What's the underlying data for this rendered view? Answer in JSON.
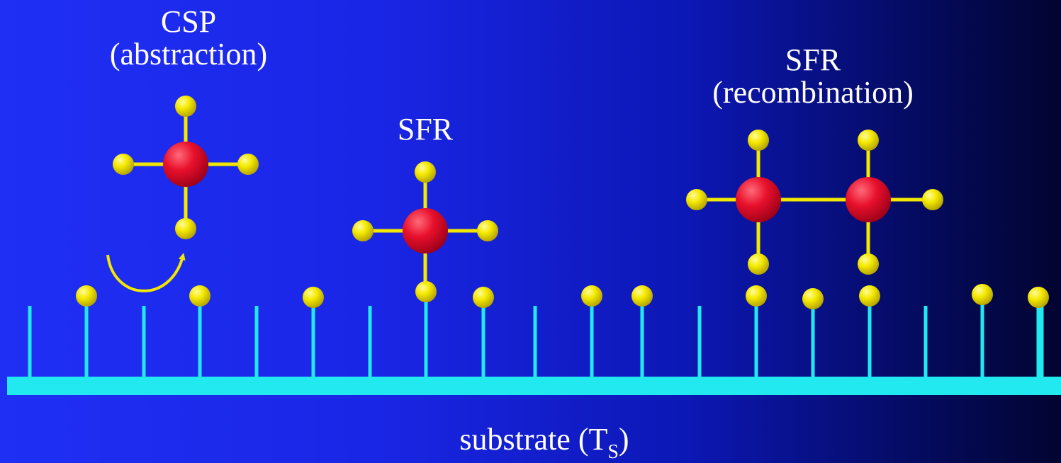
{
  "labels": {
    "csp_title": "CSP",
    "csp_subtitle": "(abstraction)",
    "sfr_middle": "SFR",
    "sfr_right_title": "SFR",
    "sfr_right_subtitle": "(recombination)",
    "substrate_main": "substrate (T",
    "substrate_sub": "S",
    "substrate_close": ")"
  },
  "colors": {
    "background_left": "#1f2ff4",
    "background_right": "#020430",
    "substrate": "#22e8f0",
    "hydrogen": "#f2e800",
    "carbon": "#e8102c",
    "bond": "#f2e800",
    "arrow": "#f2e800",
    "text": "#ffffff"
  }
}
